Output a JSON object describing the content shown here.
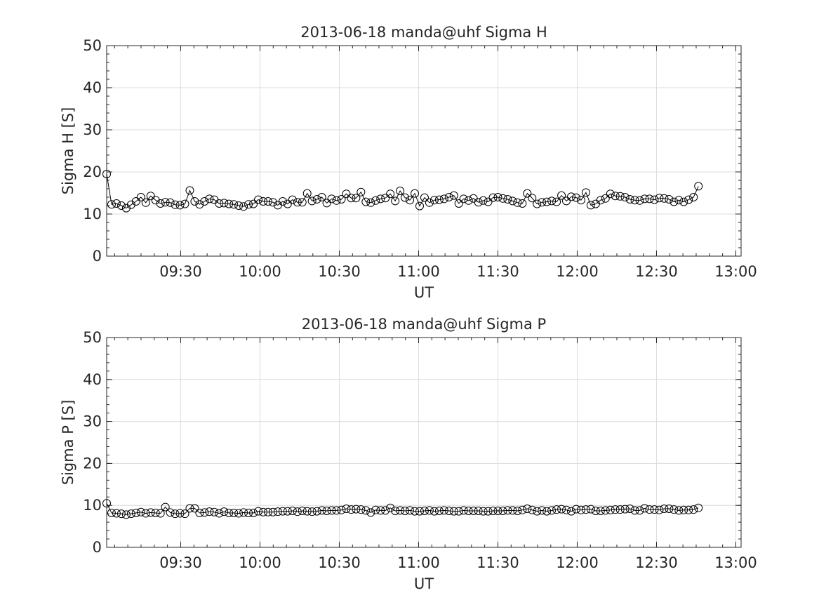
{
  "chart_data": [
    {
      "type": "line",
      "title": "2013-06-18  manda@uhf Sigma H",
      "xlabel": "UT",
      "ylabel": "Sigma H [S]",
      "ylim": [
        0,
        50
      ],
      "yticks": [
        0,
        10,
        20,
        30,
        40,
        50
      ],
      "xlim": [
        "09:02",
        "13:02"
      ],
      "xticks": [
        "09:30",
        "10:00",
        "10:30",
        "11:00",
        "11:30",
        "12:00",
        "12:30",
        "13:00"
      ],
      "grid": true,
      "marker": "open-circle",
      "series": [
        {
          "x_start": "09:02",
          "x_step_minutes": 1.85,
          "values": [
            19.5,
            12.3,
            12.5,
            12,
            11.4,
            12.2,
            13,
            14,
            12.7,
            14.3,
            13.3,
            12.5,
            12.8,
            12.7,
            12.2,
            12.1,
            12.4,
            15.6,
            13,
            12.3,
            13,
            13.6,
            13.4,
            12.5,
            12.6,
            12.4,
            12.3,
            12,
            11.8,
            12.3,
            12.4,
            13.4,
            13,
            13,
            12.8,
            12.1,
            13,
            12.4,
            13.4,
            12.8,
            12.8,
            14.9,
            13.1,
            13.5,
            14,
            12.6,
            13.6,
            13.2,
            13.5,
            14.8,
            13.8,
            13.8,
            15.2,
            12.9,
            12.7,
            13.2,
            13.6,
            13.8,
            14.8,
            13.1,
            15.5,
            13.9,
            13.3,
            14.9,
            11.9,
            13.9,
            12.7,
            13.3,
            13.4,
            13.6,
            14,
            14.4,
            12.5,
            13.6,
            13.2,
            13.7,
            12.8,
            13.2,
            12.9,
            13.9,
            14,
            13.7,
            13.5,
            13.1,
            12.7,
            12.5,
            14.9,
            13.8,
            12.4,
            12.8,
            12.9,
            13.1,
            12.9,
            14.4,
            13.1,
            14.1,
            13.9,
            13.3,
            15.1,
            12.1,
            12.4,
            13.3,
            13.7,
            14.8,
            14.3,
            14.2,
            14,
            13.5,
            13.3,
            13.2,
            13.6,
            13.6,
            13.4,
            13.8,
            13.7,
            13.5,
            12.9,
            13.3,
            12.9,
            13.4,
            14,
            16.6
          ]
        }
      ]
    },
    {
      "type": "line",
      "title": "2013-06-18  manda@uhf Sigma P",
      "xlabel": "UT",
      "ylabel": "Sigma P [S]",
      "ylim": [
        0,
        50
      ],
      "yticks": [
        0,
        10,
        20,
        30,
        40,
        50
      ],
      "xlim": [
        "09:02",
        "13:02"
      ],
      "xticks": [
        "09:30",
        "10:00",
        "10:30",
        "11:00",
        "11:30",
        "12:00",
        "12:30",
        "13:00"
      ],
      "grid": true,
      "marker": "open-circle",
      "series": [
        {
          "x_start": "09:02",
          "x_step_minutes": 1.85,
          "values": [
            10.5,
            8.2,
            8.1,
            8,
            7.8,
            8,
            8.2,
            8.4,
            8.1,
            8.3,
            8.2,
            8.1,
            9.6,
            8.3,
            8,
            8.1,
            8,
            9.3,
            9.3,
            8.2,
            8.3,
            8.5,
            8.4,
            8.1,
            8.5,
            8.2,
            8.2,
            8.1,
            8.3,
            8.2,
            8.2,
            8.6,
            8.4,
            8.4,
            8.4,
            8.5,
            8.6,
            8.6,
            8.7,
            8.5,
            8.7,
            8.6,
            8.5,
            8.6,
            8.8,
            8.7,
            8.8,
            8.8,
            8.9,
            9.2,
            9,
            9.1,
            9,
            8.8,
            8.3,
            8.9,
            8.8,
            8.8,
            9.4,
            8.7,
            8.8,
            8.7,
            8.8,
            8.6,
            8.6,
            8.7,
            8.8,
            8.6,
            8.7,
            8.8,
            8.7,
            8.6,
            8.6,
            8.8,
            8.7,
            8.7,
            8.7,
            8.6,
            8.6,
            8.7,
            8.7,
            8.7,
            8.8,
            8.8,
            8.7,
            8.9,
            9.2,
            8.9,
            8.6,
            8.8,
            8.6,
            8.8,
            9,
            9.1,
            8.9,
            8.6,
            9.1,
            8.9,
            9,
            9.1,
            8.7,
            8.7,
            8.8,
            8.9,
            9,
            9,
            9.1,
            9.2,
            8.8,
            8.8,
            9.3,
            9,
            9,
            8.9,
            9.2,
            9.2,
            9,
            8.8,
            8.9,
            8.9,
            9,
            9.4
          ]
        }
      ]
    }
  ]
}
